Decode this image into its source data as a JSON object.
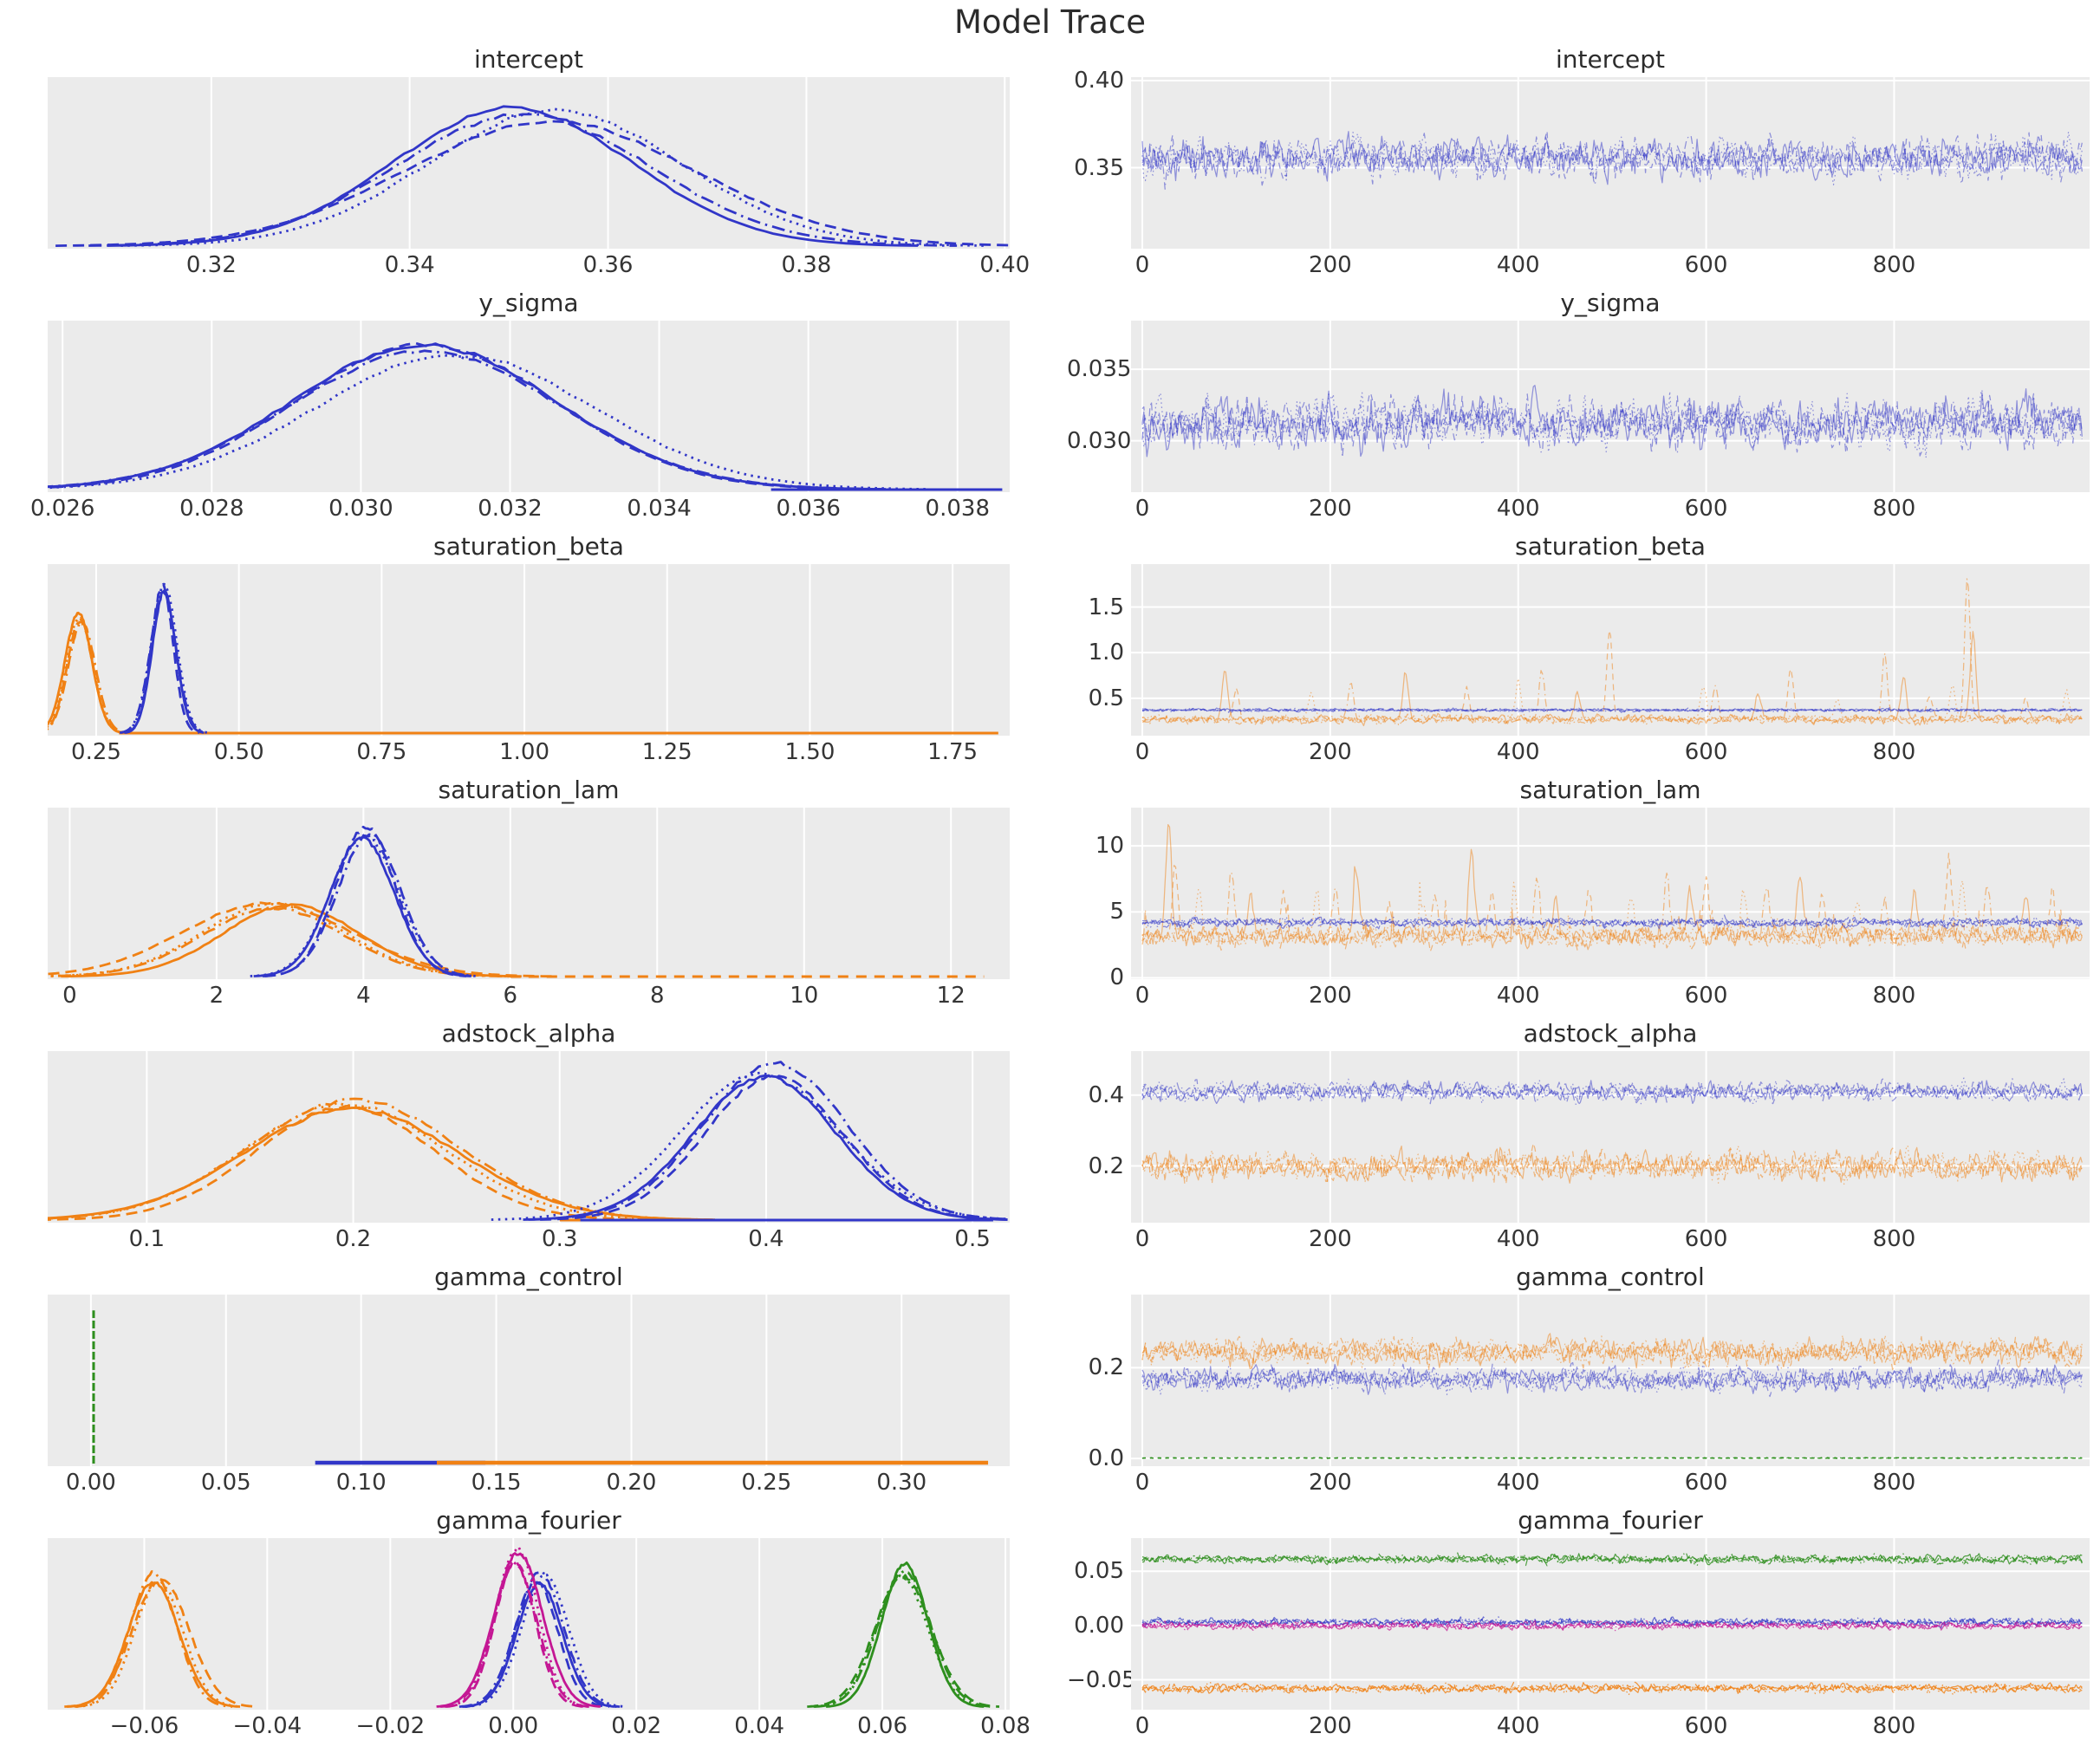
{
  "page_title": "Model Trace",
  "theme": {
    "plot_bg": "#ebebeb",
    "grid": "#ffffff",
    "title_text": "#2b2b2b",
    "tick_text": "#353535"
  },
  "colors": {
    "blue": "#3136c8",
    "orange": "#f08114",
    "green": "#2e8f1e",
    "magenta": "#c41794"
  },
  "layout": {
    "chains": 4,
    "kde_dashes": [
      "",
      "13 7",
      "2.5 5.5",
      "15 6 2.5 6"
    ],
    "trace_dashes": [
      "",
      "7 5",
      "1.6 3.4",
      "9 4 1.6 4"
    ],
    "legend": "none",
    "grid": "on"
  },
  "chart_data": [
    {
      "param": "intercept",
      "kde": {
        "type": "line",
        "xlim": [
          0.3035,
          0.4005
        ],
        "xticks": [
          0.32,
          0.34,
          0.36,
          0.38,
          0.4
        ],
        "xtick_labels": [
          "0.32",
          "0.34",
          "0.36",
          "0.38",
          "0.40"
        ],
        "series": [
          {
            "color": "blue",
            "kind": "gauss",
            "mean": 0.353,
            "sd": 0.0135,
            "height": 0.82
          }
        ]
      },
      "trace": {
        "type": "line",
        "xlim": [
          -12,
          1008
        ],
        "xticks": [
          0,
          200,
          400,
          600,
          800
        ],
        "xtick_labels": [
          "0",
          "200",
          "400",
          "600",
          "800"
        ],
        "ylim": [
          0.3035,
          0.402
        ],
        "yticks": [
          0.35,
          0.4
        ],
        "ytick_labels": [
          "0.35",
          "0.40"
        ],
        "series": [
          {
            "color": "blue",
            "mean": 0.3555,
            "noise": 0.0125,
            "opacity": 0.5
          }
        ]
      }
    },
    {
      "param": "y_sigma",
      "kde": {
        "type": "line",
        "xlim": [
          0.0258,
          0.0387
        ],
        "xticks": [
          0.026,
          0.028,
          0.03,
          0.032,
          0.034,
          0.036,
          0.038
        ],
        "xtick_labels": [
          "0.026",
          "0.028",
          "0.030",
          "0.032",
          "0.034",
          "0.036",
          "0.038"
        ],
        "series": [
          {
            "color": "blue",
            "kind": "gauss",
            "mean": 0.0309,
            "sd": 0.00185,
            "height": 0.88,
            "tail": [
              0.0355,
              0.0386
            ]
          }
        ]
      },
      "trace": {
        "type": "line",
        "xlim": [
          -12,
          1008
        ],
        "xticks": [
          0,
          200,
          400,
          600,
          800
        ],
        "xtick_labels": [
          "0",
          "200",
          "400",
          "600",
          "800"
        ],
        "ylim": [
          0.0264,
          0.0384
        ],
        "yticks": [
          0.03,
          0.035
        ],
        "ytick_labels": [
          "0.030",
          "0.035"
        ],
        "series": [
          {
            "color": "blue",
            "mean": 0.0312,
            "noise": 0.0018,
            "opacity": 0.5
          }
        ]
      }
    },
    {
      "param": "saturation_beta",
      "kde": {
        "type": "line",
        "xlim": [
          0.165,
          1.85
        ],
        "xticks": [
          0.25,
          0.5,
          0.75,
          1.0,
          1.25,
          1.5,
          1.75
        ],
        "xtick_labels": [
          "0.25",
          "0.50",
          "0.75",
          "1.00",
          "1.25",
          "1.50",
          "1.75"
        ],
        "series": [
          {
            "color": "orange",
            "kind": "gauss",
            "mean": 0.222,
            "sd": 0.021,
            "height": 0.72,
            "tail": [
              0.29,
              1.83
            ]
          },
          {
            "color": "blue",
            "kind": "gauss",
            "mean": 0.368,
            "sd": 0.02,
            "height": 0.92
          }
        ]
      },
      "trace": {
        "type": "line",
        "xlim": [
          -12,
          1008
        ],
        "xticks": [
          0,
          200,
          400,
          600,
          800
        ],
        "xtick_labels": [
          "0",
          "200",
          "400",
          "600",
          "800"
        ],
        "ylim": [
          0.09,
          1.97
        ],
        "yticks": [
          0.5,
          1.0,
          1.5
        ],
        "ytick_labels": [
          "0.5",
          "1.0",
          "1.5"
        ],
        "series": [
          {
            "color": "orange",
            "mean": 0.27,
            "noise": 0.05,
            "min": 0.17,
            "opacity": 0.5,
            "spikes": [
              [
                88,
                0.8
              ],
              [
                100,
                0.62
              ],
              [
                180,
                0.55
              ],
              [
                222,
                0.67
              ],
              [
                280,
                0.8
              ],
              [
                345,
                0.62
              ],
              [
                400,
                0.7
              ],
              [
                425,
                0.8
              ],
              [
                463,
                0.55
              ],
              [
                497,
                1.28
              ],
              [
                597,
                0.65
              ],
              [
                610,
                0.63
              ],
              [
                655,
                0.55
              ],
              [
                690,
                0.82
              ],
              [
                740,
                0.5
              ],
              [
                790,
                1.02
              ],
              [
                810,
                0.75
              ],
              [
                838,
                0.55
              ],
              [
                862,
                0.65
              ],
              [
                878,
                1.86
              ],
              [
                884,
                1.2
              ],
              [
                940,
                0.52
              ],
              [
                983,
                0.55
              ]
            ]
          },
          {
            "color": "blue",
            "mean": 0.37,
            "noise": 0.018,
            "opacity": 0.55
          }
        ]
      }
    },
    {
      "param": "saturation_lam",
      "kde": {
        "type": "line",
        "xlim": [
          -0.3,
          12.8
        ],
        "xticks": [
          0,
          2,
          4,
          6,
          8,
          10,
          12
        ],
        "xtick_labels": [
          "0",
          "2",
          "4",
          "6",
          "8",
          "10",
          "12"
        ],
        "series": [
          {
            "color": "orange",
            "kind": "gauss",
            "mean": 2.85,
            "sd": 1.05,
            "height": 0.44,
            "tail": [
              6.0,
              12.45
            ],
            "tail_dash": "12 9"
          },
          {
            "color": "blue",
            "kind": "gauss",
            "mean": 4.02,
            "sd": 0.42,
            "height": 0.9
          }
        ]
      },
      "trace": {
        "type": "line",
        "xlim": [
          -12,
          1008
        ],
        "xticks": [
          0,
          200,
          400,
          600,
          800
        ],
        "xtick_labels": [
          "0",
          "200",
          "400",
          "600",
          "800"
        ],
        "ylim": [
          -0.1,
          12.9
        ],
        "yticks": [
          0,
          5,
          10
        ],
        "ytick_labels": [
          "0",
          "5",
          "10"
        ],
        "series": [
          {
            "color": "orange",
            "mean": 3.2,
            "noise": 0.9,
            "min": 0.5,
            "opacity": 0.5,
            "skew_p": 0.012,
            "skew_amp": 2.4,
            "spikes": [
              [
                28,
                12.3
              ],
              [
                35,
                8.5
              ],
              [
                60,
                6.5
              ],
              [
                95,
                7.8
              ],
              [
                115,
                6.3
              ],
              [
                150,
                6.4
              ],
              [
                185,
                7.0
              ],
              [
                205,
                6.8
              ],
              [
                228,
                7.9
              ],
              [
                262,
                6.3
              ],
              [
                298,
                6.2
              ],
              [
                312,
                6.6
              ],
              [
                350,
                9.2
              ],
              [
                372,
                6.5
              ],
              [
                395,
                6.9
              ],
              [
                420,
                7.7
              ],
              [
                440,
                6.3
              ],
              [
                475,
                6.3
              ],
              [
                520,
                6.6
              ],
              [
                558,
                7.9
              ],
              [
                583,
                6.9
              ],
              [
                600,
                7.4
              ],
              [
                640,
                6.2
              ],
              [
                665,
                6.7
              ],
              [
                700,
                8.1
              ],
              [
                723,
                6.4
              ],
              [
                760,
                6.3
              ],
              [
                790,
                6.2
              ],
              [
                822,
                6.4
              ],
              [
                858,
                9.3
              ],
              [
                872,
                7.5
              ],
              [
                900,
                6.3
              ],
              [
                940,
                6.1
              ],
              [
                968,
                6.5
              ]
            ]
          },
          {
            "color": "blue",
            "mean": 4.2,
            "noise": 0.35,
            "opacity": 0.55
          }
        ]
      }
    },
    {
      "param": "adstock_alpha",
      "kde": {
        "type": "line",
        "xlim": [
          0.052,
          0.518
        ],
        "xticks": [
          0.1,
          0.2,
          0.3,
          0.4,
          0.5
        ],
        "xtick_labels": [
          "0.1",
          "0.2",
          "0.3",
          "0.4",
          "0.5"
        ],
        "series": [
          {
            "color": "orange",
            "kind": "gauss",
            "mean": 0.192,
            "sd": 0.047,
            "height": 0.73,
            "tail": [
              0.3,
              0.36
            ]
          },
          {
            "color": "blue",
            "kind": "gauss",
            "mean": 0.402,
            "sd": 0.036,
            "height": 0.93,
            "tail": [
              0.31,
              0.51
            ]
          }
        ]
      },
      "trace": {
        "type": "line",
        "xlim": [
          -12,
          1008
        ],
        "xticks": [
          0,
          200,
          400,
          600,
          800
        ],
        "xtick_labels": [
          "0",
          "200",
          "400",
          "600",
          "800"
        ],
        "ylim": [
          0.04,
          0.524
        ],
        "yticks": [
          0.2,
          0.4
        ],
        "ytick_labels": [
          "0.2",
          "0.4"
        ],
        "series": [
          {
            "color": "orange",
            "mean": 0.2,
            "noise": 0.042,
            "opacity": 0.5
          },
          {
            "color": "blue",
            "mean": 0.41,
            "noise": 0.028,
            "opacity": 0.5
          }
        ]
      }
    },
    {
      "param": "gamma_control",
      "kde": {
        "type": "line",
        "xlim": [
          -0.016,
          0.34
        ],
        "xticks": [
          0.0,
          0.05,
          0.1,
          0.15,
          0.2,
          0.25,
          0.3
        ],
        "xtick_labels": [
          "0.00",
          "0.05",
          "0.10",
          "0.15",
          "0.20",
          "0.25",
          "0.30"
        ],
        "series": [
          {
            "color": "green",
            "kind": "vline",
            "x": 0.001,
            "height": 0.95
          },
          {
            "color": "blue",
            "kind": "rug",
            "from": 0.083,
            "to": 0.146
          },
          {
            "color": "orange",
            "kind": "rug",
            "from": 0.128,
            "to": 0.332
          }
        ]
      },
      "trace": {
        "type": "line",
        "xlim": [
          -12,
          1008
        ],
        "xticks": [
          0,
          200,
          400,
          600,
          800
        ],
        "xtick_labels": [
          "0",
          "200",
          "400",
          "600",
          "800"
        ],
        "ylim": [
          -0.017,
          0.361
        ],
        "yticks": [
          0.0,
          0.2
        ],
        "ytick_labels": [
          "0.0",
          "0.2"
        ],
        "series": [
          {
            "color": "blue",
            "mean": 0.175,
            "noise": 0.028,
            "opacity": 0.5
          },
          {
            "color": "orange",
            "mean": 0.235,
            "noise": 0.032,
            "opacity": 0.5
          },
          {
            "color": "green",
            "mean": 0.001,
            "noise": 0.0012,
            "opacity": 0.85,
            "flat": true
          }
        ]
      }
    },
    {
      "param": "gamma_fourier",
      "kde": {
        "type": "line",
        "xlim": [
          -0.0757,
          0.0807
        ],
        "xticks": [
          -0.06,
          -0.04,
          -0.02,
          0.0,
          0.02,
          0.04,
          0.06,
          0.08
        ],
        "xtick_labels": [
          "−0.06",
          "−0.04",
          "−0.02",
          "0.00",
          "0.02",
          "0.04",
          "0.06",
          "0.08"
        ],
        "series": [
          {
            "color": "orange",
            "kind": "gauss",
            "mean": -0.058,
            "sd": 0.0042,
            "height": 0.82
          },
          {
            "color": "blue",
            "kind": "gauss",
            "mean": 0.0045,
            "sd": 0.0038,
            "height": 0.8
          },
          {
            "color": "magenta",
            "kind": "gauss",
            "mean": 0.0005,
            "sd": 0.0035,
            "height": 0.95
          },
          {
            "color": "green",
            "kind": "gauss",
            "mean": 0.063,
            "sd": 0.0042,
            "height": 0.86
          }
        ]
      },
      "trace": {
        "type": "line",
        "xlim": [
          -12,
          1008
        ],
        "xticks": [
          0,
          200,
          400,
          600,
          800
        ],
        "xtick_labels": [
          "0",
          "200",
          "400",
          "600",
          "800"
        ],
        "ylim": [
          -0.0775,
          0.0805
        ],
        "yticks": [
          -0.05,
          0.0,
          0.05
        ],
        "ytick_labels": [
          "−0.05",
          "0.00",
          "0.05"
        ],
        "series": [
          {
            "color": "green",
            "mean": 0.061,
            "noise": 0.0042,
            "opacity": 0.8
          },
          {
            "color": "blue",
            "mean": 0.003,
            "noise": 0.0038,
            "opacity": 0.7
          },
          {
            "color": "magenta",
            "mean": 0.0,
            "noise": 0.0038,
            "opacity": 0.7
          },
          {
            "color": "orange",
            "mean": -0.058,
            "noise": 0.0042,
            "opacity": 0.8
          }
        ]
      }
    }
  ]
}
